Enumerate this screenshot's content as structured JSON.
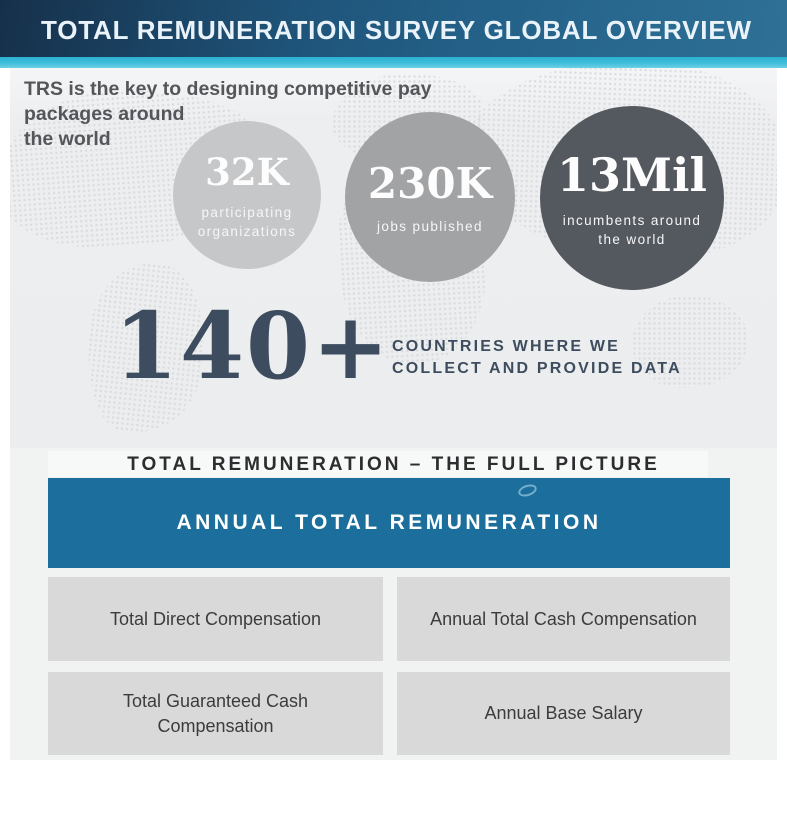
{
  "header": {
    "title": "TOTAL REMUNERATION SURVEY GLOBAL OVERVIEW"
  },
  "intro": {
    "lines": [
      "TRS is the key to designing competitive pay",
      "packages around",
      "the world"
    ]
  },
  "stats": [
    {
      "value": "32K",
      "label": "participating organizations",
      "color": "#c6c7c9"
    },
    {
      "value": "230K",
      "label": "jobs published",
      "color": "#a2a3a5"
    },
    {
      "value": "13Mil",
      "label": "incumbents around the world",
      "color": "#54585f"
    }
  ],
  "countries": {
    "number": "140+",
    "label_lines": [
      "COUNTRIES WHERE WE",
      "COLLECT AND PROVIDE DATA"
    ]
  },
  "full_picture": {
    "heading": "TOTAL REMUNERATION – THE FULL PICTURE",
    "banner": {
      "label": "ANNUAL TOTAL REMUNERATION",
      "color": "#1c6f9d"
    },
    "boxes": [
      {
        "label": "Total Direct Compensation"
      },
      {
        "label": "Annual Total Cash Compensation"
      },
      {
        "label": "Total Guaranteed Cash Compensation"
      },
      {
        "label": "Annual Base Salary"
      }
    ]
  },
  "colors": {
    "header_gradient_start": "#16304a",
    "header_gradient_end": "#2e7096",
    "accent_teal": "#3fbeda",
    "map_panel_bg": "#edeef0",
    "map_dots": "#d6d8da",
    "section_bg": "#f1f2f2",
    "box_bg": "#d9d9d9",
    "number_color": "#3d4c5e",
    "banner_text": "#ffffff"
  }
}
